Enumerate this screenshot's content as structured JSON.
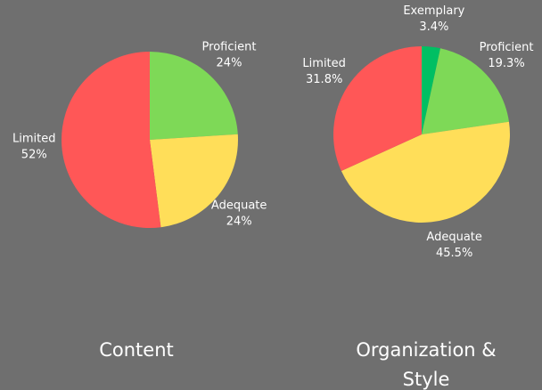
{
  "chart_data": [
    {
      "type": "pie",
      "title": "Content",
      "categories": [
        "Proficient",
        "Adequate",
        "Limited"
      ],
      "values": [
        24,
        24,
        52
      ],
      "value_labels": [
        "24%",
        "24%",
        "52%"
      ],
      "colors": [
        "#7ed957",
        "#ffde59",
        "#ff5757"
      ]
    },
    {
      "type": "pie",
      "title": "Organization & Style",
      "categories": [
        "Exemplary",
        "Proficient",
        "Adequate",
        "Limited"
      ],
      "values": [
        3.4,
        19.3,
        45.5,
        31.8
      ],
      "value_labels": [
        "3.4%",
        "19.3%",
        "45.5%",
        "31.8%"
      ],
      "colors": [
        "#00bf63",
        "#7ed957",
        "#ffde59",
        "#ff5757"
      ]
    }
  ]
}
